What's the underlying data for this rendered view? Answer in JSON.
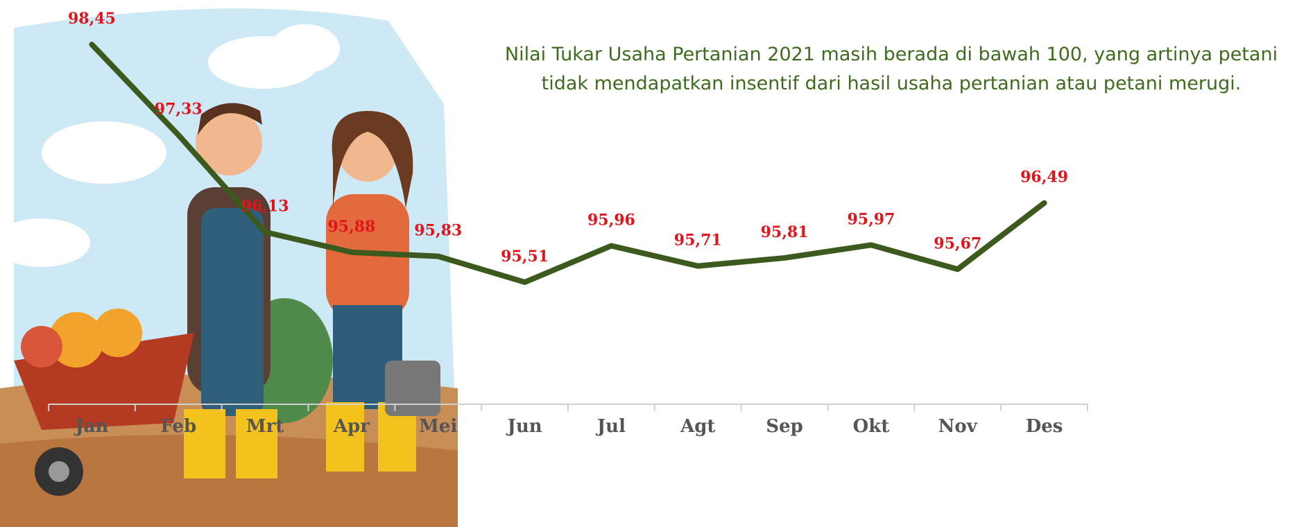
{
  "chart_data": {
    "type": "line",
    "title": "Nilai Tukar Usaha Pertanian 2021 masih berada di bawah 100, yang artinya petani tidak mendapatkan insentif dari hasil usaha pertanian atau petani merugi.",
    "categories": [
      "Jan",
      "Feb",
      "Mrt",
      "Apr",
      "Mei",
      "Jun",
      "Jul",
      "Agt",
      "Sep",
      "Okt",
      "Nov",
      "Des"
    ],
    "values": [
      98.45,
      97.33,
      96.13,
      95.88,
      95.83,
      95.51,
      95.96,
      95.71,
      95.81,
      95.97,
      95.67,
      96.49
    ],
    "value_labels": [
      "98,45",
      "97,33",
      "96,13",
      "95,88",
      "95,83",
      "95,51",
      "95,96",
      "95,71",
      "95,81",
      "95,97",
      "95,67",
      "96,49"
    ],
    "color": "#3d5a1e",
    "label_color": "#e1141c",
    "ylim": [
      94,
      99
    ]
  }
}
